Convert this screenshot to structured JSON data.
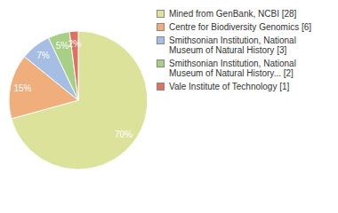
{
  "chart_data": {
    "type": "pie",
    "categories": [
      "Mined from GenBank, NCBI [28]",
      "Centre for Biodiversity Genomics [6]",
      "Smithsonian Institution, National Museum of Natural History [3]",
      "Smithsonian Institution, National Museum of Natural History... [2]",
      "Vale Institute of Technology [1]"
    ],
    "values": [
      70,
      15,
      7,
      5,
      2
    ],
    "value_labels": [
      "70%",
      "15%",
      "7%",
      "5%",
      "2%"
    ],
    "colors": [
      "#dde29b",
      "#efae7c",
      "#a6bee3",
      "#a7cf86",
      "#e0705f"
    ],
    "data_labels": true,
    "legend": "right"
  }
}
